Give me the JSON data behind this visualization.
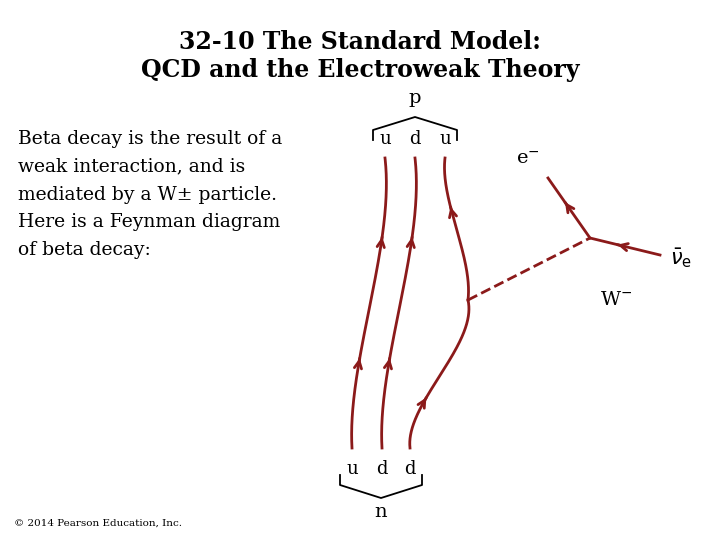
{
  "title_line1": "32-10 The Standard Model:",
  "title_line2": "QCD and the Electroweak Theory",
  "body_text": "Beta decay is the result of a\nweak interaction, and is\nmediated by a W± particle.\nHere is a Feynman diagram\nof beta decay:",
  "copyright": "© 2014 Pearson Education, Inc.",
  "diagram_color": "#8B1A1A",
  "background_color": "#ffffff",
  "title_fontsize": 17,
  "body_fontsize": 13.5,
  "label_fontsize": 13
}
